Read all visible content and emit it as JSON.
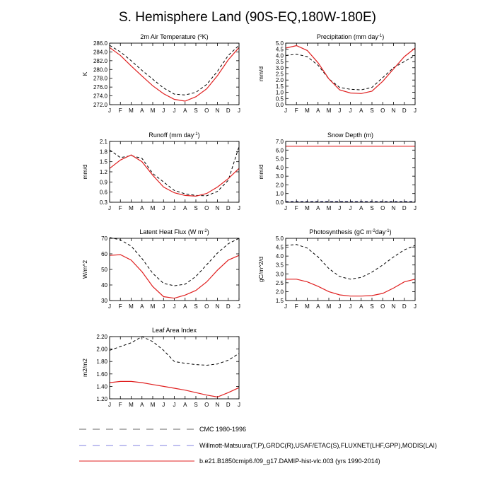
{
  "title": "S. Hemisphere Land (90S-EQ,180W-180E)",
  "months": [
    "J",
    "F",
    "M",
    "A",
    "M",
    "J",
    "J",
    "A",
    "S",
    "O",
    "N",
    "D",
    "J"
  ],
  "colors": {
    "obs": "#000000",
    "obs2": "#3030d0",
    "model": "#e02020"
  },
  "legend": [
    {
      "label": "CMC 1980-1996",
      "color": "#666666",
      "dash": "long-dash"
    },
    {
      "label": "Willmott-Matsuura(T,P),GRDC(R),USAF/ETAC(S),FLUXNET(LHF,GPP),MODIS(LAI)",
      "color": "#8080e0",
      "dash": "long-dash"
    },
    {
      "label": "b.e21.B1850cmip6.f09_g17.DAMIP-hist-vlc.003 (yrs 1990-2014)",
      "color": "#e02020",
      "dash": "solid"
    }
  ],
  "chart_data": [
    {
      "type": "line",
      "title": "2m Air Temperature (",
      "title_sup": "o",
      "title_after": "K)",
      "ylabel": "K",
      "ylim": [
        272.0,
        286.0
      ],
      "yticks": [
        "272.0",
        "274.0",
        "276.0",
        "278.0",
        "280.0",
        "282.0",
        "284.0",
        "286.0"
      ],
      "series": [
        {
          "role": "obs",
          "values": [
            285.5,
            284.0,
            282.0,
            279.8,
            277.8,
            275.8,
            274.4,
            274.2,
            274.8,
            276.6,
            279.6,
            283.2,
            285.5
          ]
        },
        {
          "role": "model",
          "values": [
            285.0,
            283.2,
            280.8,
            278.5,
            276.3,
            274.5,
            273.2,
            272.8,
            273.8,
            275.6,
            278.6,
            282.2,
            285.0
          ]
        }
      ]
    },
    {
      "type": "line",
      "title": "Precipitation (mm day",
      "title_sup": "-1",
      "title_after": ")",
      "ylabel": "mm/d",
      "ylim": [
        0.0,
        5.0
      ],
      "yticks": [
        "0.0",
        "0.5",
        "1.0",
        "1.5",
        "2.0",
        "2.5",
        "3.0",
        "3.5",
        "4.0",
        "4.5",
        "5.0"
      ],
      "series": [
        {
          "role": "obs",
          "values": [
            4.0,
            4.1,
            3.9,
            3.2,
            2.1,
            1.4,
            1.25,
            1.2,
            1.4,
            2.2,
            3.0,
            3.5,
            4.0
          ]
        },
        {
          "role": "model",
          "values": [
            4.6,
            4.8,
            4.4,
            3.4,
            2.1,
            1.2,
            0.95,
            0.9,
            1.1,
            1.9,
            2.9,
            3.9,
            4.6
          ]
        }
      ]
    },
    {
      "type": "line",
      "title": "Runoff (mm day",
      "title_sup": "-1",
      "title_after": ")",
      "ylabel": "mm/d",
      "ylim": [
        0.3,
        2.1
      ],
      "yticks": [
        "0.3",
        "0.6",
        "0.9",
        "1.2",
        "1.5",
        "1.8",
        "2.1"
      ],
      "series": [
        {
          "role": "obs",
          "values": [
            1.85,
            1.62,
            1.68,
            1.6,
            1.15,
            0.9,
            0.65,
            0.55,
            0.5,
            0.49,
            0.62,
            0.95,
            1.95
          ]
        },
        {
          "role": "model",
          "values": [
            1.3,
            1.55,
            1.7,
            1.5,
            1.1,
            0.75,
            0.58,
            0.5,
            0.48,
            0.56,
            0.75,
            1.0,
            1.3
          ]
        }
      ]
    },
    {
      "type": "line",
      "title": "Snow Depth (m)",
      "title_sup": "",
      "title_after": "",
      "ylabel": "mm/d",
      "ylim": [
        0.0,
        7.0
      ],
      "yticks": [
        "0.0",
        "1.0",
        "2.0",
        "3.0",
        "4.0",
        "5.0",
        "6.0",
        "7.0"
      ],
      "series": [
        {
          "role": "obs2",
          "values": [
            0.08,
            0.08,
            0.08,
            0.08,
            0.08,
            0.08,
            0.08,
            0.08,
            0.08,
            0.08,
            0.08,
            0.08,
            0.08
          ]
        },
        {
          "role": "obs",
          "values": [
            0.05,
            0.05,
            0.05,
            0.05,
            0.05,
            0.05,
            0.05,
            0.05,
            0.05,
            0.05,
            0.05,
            0.05,
            0.05
          ]
        },
        {
          "role": "model",
          "values": [
            6.45,
            6.45,
            6.45,
            6.45,
            6.45,
            6.45,
            6.45,
            6.45,
            6.45,
            6.45,
            6.45,
            6.45,
            6.45
          ]
        }
      ]
    },
    {
      "type": "line",
      "title": "Latent Heat Flux (W m",
      "title_sup": "-2",
      "title_after": ")",
      "ylabel": "W/m^2",
      "ylim": [
        30,
        70
      ],
      "yticks": [
        "30",
        "40",
        "50",
        "60",
        "70"
      ],
      "series": [
        {
          "role": "obs",
          "values": [
            70.5,
            69.0,
            65.0,
            57.0,
            47.5,
            41.0,
            39.5,
            40.5,
            45.5,
            53.0,
            60.5,
            66.5,
            70.0
          ]
        },
        {
          "role": "model",
          "values": [
            59.0,
            59.5,
            56.0,
            48.5,
            39.0,
            32.5,
            31.5,
            33.5,
            36.5,
            42.0,
            49.5,
            56.0,
            59.0
          ]
        }
      ]
    },
    {
      "type": "line",
      "title": "Photosynthesis (gC m",
      "title_sup": "-2",
      "title_after": "day",
      "title_sup2": "-1",
      "title_end": ")",
      "ylabel": "gC/m^2/d",
      "ylim": [
        1.5,
        5.0
      ],
      "yticks": [
        "1.5",
        "2.0",
        "2.5",
        "3.0",
        "3.5",
        "4.0",
        "4.5",
        "5.0"
      ],
      "series": [
        {
          "role": "obs",
          "values": [
            4.6,
            4.65,
            4.45,
            3.95,
            3.3,
            2.85,
            2.7,
            2.8,
            3.1,
            3.5,
            3.95,
            4.35,
            4.6
          ]
        },
        {
          "role": "model",
          "values": [
            2.7,
            2.7,
            2.55,
            2.3,
            2.0,
            1.82,
            1.75,
            1.75,
            1.78,
            1.9,
            2.2,
            2.55,
            2.7
          ]
        }
      ]
    },
    {
      "type": "line",
      "title": "Leaf Area Index",
      "title_sup": "",
      "title_after": "",
      "ylabel": "m2/m2",
      "ylim": [
        1.2,
        2.2
      ],
      "yticks": [
        "1.20",
        "1.40",
        "1.60",
        "1.80",
        "2.00",
        "2.20"
      ],
      "series": [
        {
          "role": "obs",
          "values": [
            1.98,
            2.04,
            2.1,
            2.2,
            2.12,
            1.98,
            1.8,
            1.77,
            1.75,
            1.74,
            1.76,
            1.82,
            1.93
          ]
        },
        {
          "role": "model",
          "values": [
            1.46,
            1.48,
            1.48,
            1.46,
            1.43,
            1.4,
            1.37,
            1.34,
            1.3,
            1.26,
            1.23,
            1.3,
            1.38
          ]
        }
      ]
    }
  ]
}
